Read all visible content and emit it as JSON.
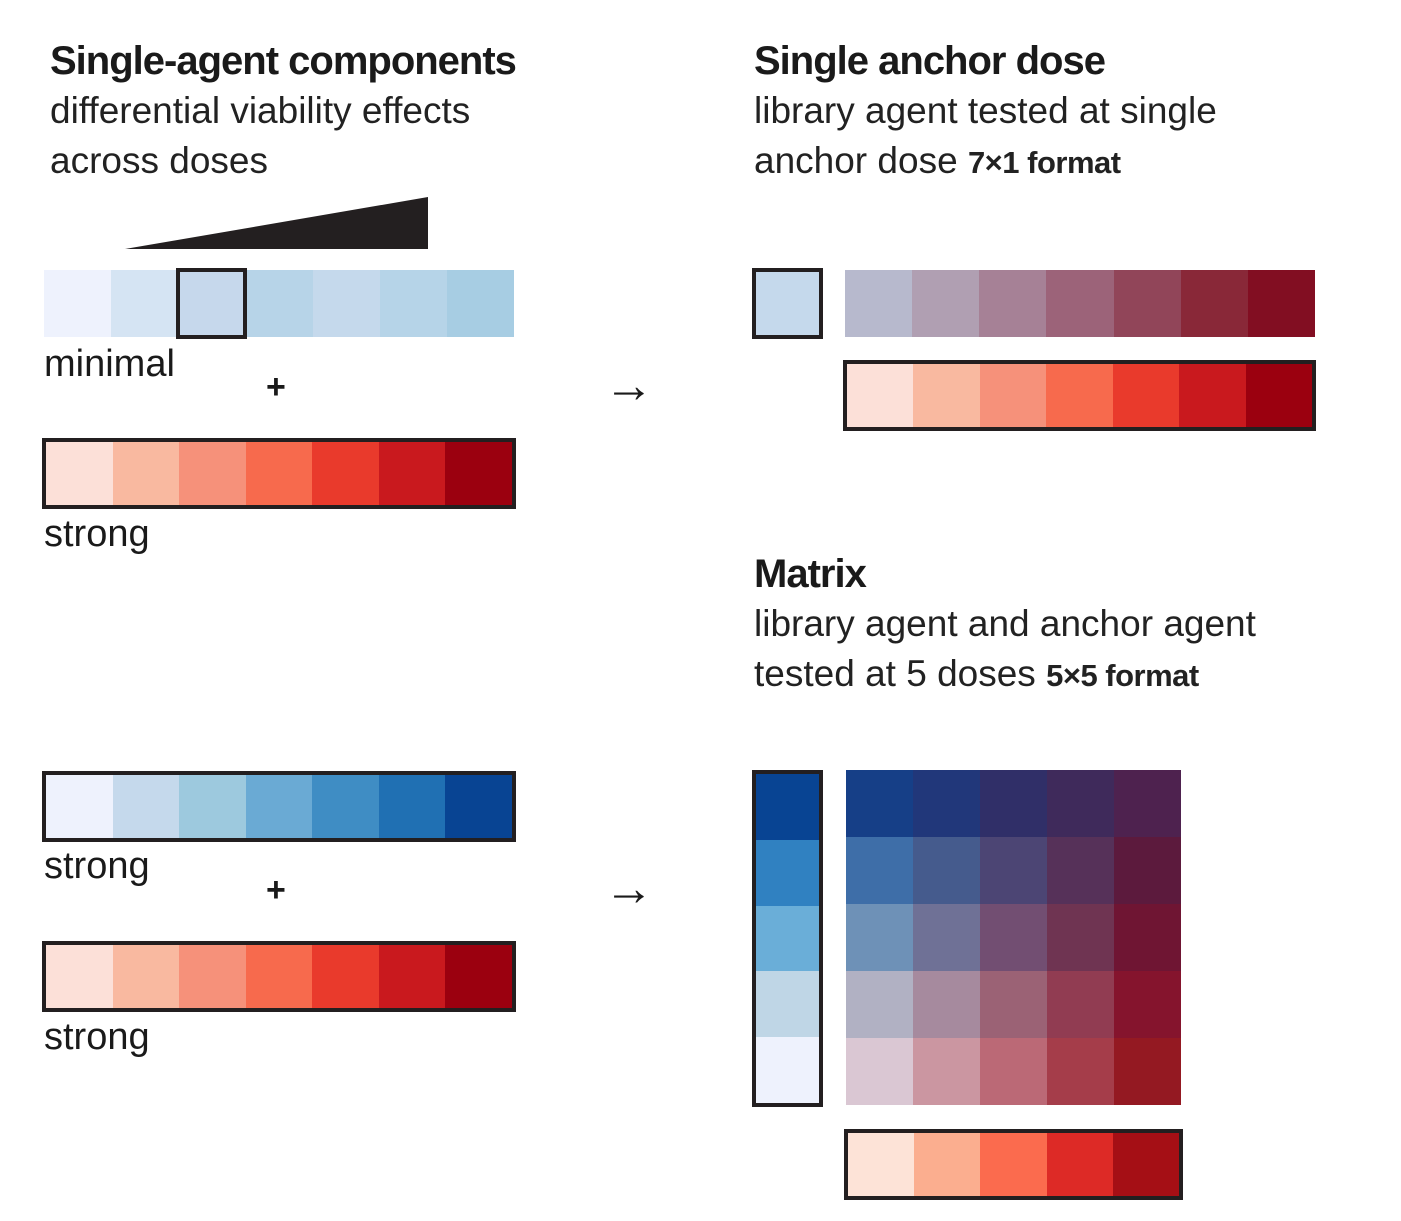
{
  "single_agent": {
    "title": "Single-agent components",
    "subtitle_line1": "differential viability effects",
    "subtitle_line2": "across doses",
    "strips": [
      {
        "label": "minimal",
        "colors": [
          "#eef2fd",
          "#d5e4f3",
          "#c6d8ec",
          "#b7d4e8",
          "#c5d9ec",
          "#b6d4e8",
          "#a7cde3"
        ]
      },
      {
        "label": "strong",
        "colors": [
          "#fce0d8",
          "#f9b9a0",
          "#f6917a",
          "#f76a4d",
          "#e93a2c",
          "#c9191e",
          "#9b000f"
        ]
      }
    ],
    "plus": "+"
  },
  "single_anchor": {
    "title": "Single anchor dose",
    "subtitle_line1": "library agent tested at single",
    "subtitle_line2": "anchor dose",
    "format": "7×1 format",
    "anchor_color": "#c5d9ec",
    "combo_colors": [
      "#b7b9cd",
      "#b09fb2",
      "#a68196",
      "#9c6379",
      "#914559",
      "#892838",
      "#820e22"
    ],
    "red_colors": [
      "#fce0d8",
      "#f9b9a0",
      "#f6917a",
      "#f76a4d",
      "#e93a2c",
      "#c9191e",
      "#9b000f"
    ]
  },
  "arrow": "→",
  "matrix": {
    "title": "Matrix",
    "subtitle_line1": "library agent and anchor agent",
    "subtitle_line2": "tested at 5 doses",
    "format": "5×5 format",
    "strips": [
      {
        "label": "strong",
        "colors": [
          "#eef2fd",
          "#c5d9ec",
          "#9dc9de",
          "#6aaad4",
          "#3f8dc4",
          "#2070b3",
          "#084493"
        ]
      },
      {
        "label": "strong",
        "colors": [
          "#fce0d8",
          "#f9b9a0",
          "#f6917a",
          "#f76a4d",
          "#e93a2c",
          "#c9191e",
          "#9b000f"
        ]
      }
    ],
    "plus": "+",
    "blue_column": [
      "#084493",
      "#3081c1",
      "#6aaed8",
      "#bfd6e6",
      "#eef2fd"
    ],
    "grid": [
      [
        "#163f87",
        "#21377a",
        "#302f68",
        "#3f2a5b",
        "#4e224f"
      ],
      [
        "#3e6ea8",
        "#455b8d",
        "#4c4574",
        "#563159",
        "#5c1a3d"
      ],
      [
        "#6e91b7",
        "#6f7196",
        "#724e72",
        "#6f3452",
        "#6f1533"
      ],
      [
        "#b1b1c3",
        "#a68a9e",
        "#9b6275",
        "#913c52",
        "#85142d"
      ],
      [
        "#dac7d3",
        "#cb96a1",
        "#bb6976",
        "#a53d4a",
        "#941922"
      ]
    ],
    "red_row": [
      "#fde3d7",
      "#fbae8f",
      "#fb6b4e",
      "#dd2a26",
      "#a50f15"
    ]
  }
}
